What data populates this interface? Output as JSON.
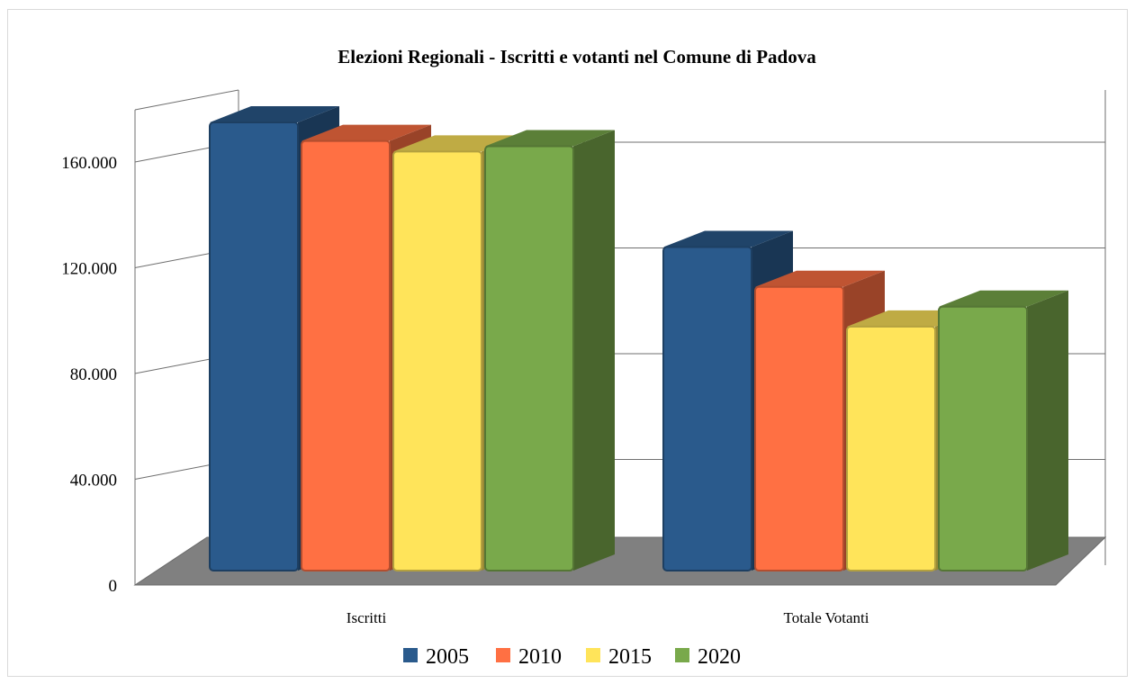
{
  "chart_data": {
    "type": "bar",
    "title": "Elezioni Regionali - Iscritti e votanti nel Comune di Padova",
    "xlabel": "",
    "ylabel": "",
    "categories": [
      "Iscritti",
      "Totale Votanti"
    ],
    "series": [
      {
        "name": "2005",
        "values": [
          169000,
          122000
        ],
        "color": "#2a5a8c"
      },
      {
        "name": "2010",
        "values": [
          162000,
          107000
        ],
        "color": "#ff7043"
      },
      {
        "name": "2015",
        "values": [
          158000,
          92000
        ],
        "color": "#ffe45a"
      },
      {
        "name": "2020",
        "values": [
          160000,
          99500
        ],
        "color": "#79a94b"
      }
    ],
    "ylim": [
      0,
      160000
    ],
    "yticks": [
      0,
      40000,
      80000,
      120000,
      160000
    ],
    "ytick_labels": [
      "0",
      "40.000",
      "80.000",
      "120.000",
      "160.000"
    ],
    "grid": true,
    "legend_position": "bottom",
    "style": "3d-clustered-column",
    "floor_color": "#808080"
  }
}
